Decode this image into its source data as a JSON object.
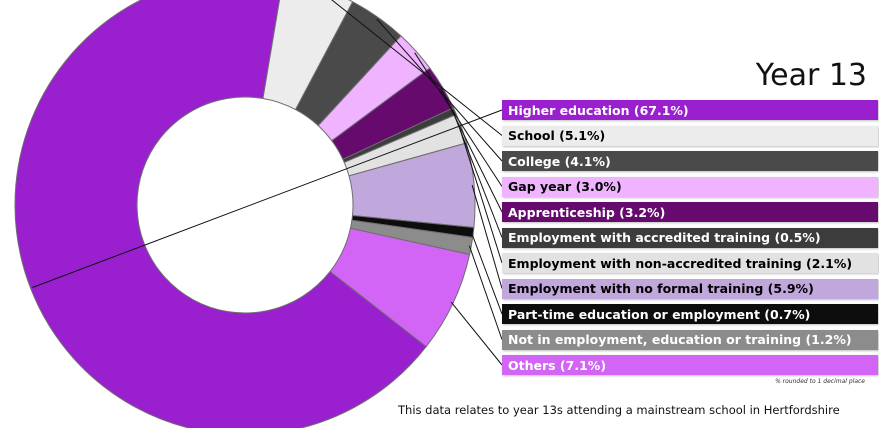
{
  "chart_data": {
    "type": "pie",
    "title": "Year 13",
    "categories": [
      "Higher education (67.1%)",
      "School (5.1%)",
      "College (4.1%)",
      "Gap year (3.0%)",
      "Apprenticeship (3.2%)",
      "Employment with accredited training (0.5%)",
      "Employment with non-accredited training (2.1%)",
      "Employment with no formal training (5.9%)",
      "Part-time education or employment (0.7%)",
      "Not in employment, education or training (1.2%)",
      "Others (7.1%)"
    ],
    "values": [
      67.1,
      5.1,
      4.1,
      3.0,
      3.2,
      0.5,
      2.1,
      5.9,
      0.7,
      1.2,
      7.1
    ],
    "colors": [
      "#9a1fcf",
      "#ececec",
      "#4a4a4a",
      "#f0b3ff",
      "#660a6e",
      "#3c3c3c",
      "#e2e2e2",
      "#c0a8dc",
      "#0d0d0d",
      "#8c8c8c",
      "#d265f5"
    ],
    "text_colors": [
      "#ffffff",
      "#000000",
      "#ffffff",
      "#000000",
      "#ffffff",
      "#ffffff",
      "#000000",
      "#000000",
      "#ffffff",
      "#ffffff",
      "#ffffff"
    ],
    "legend_position": "right",
    "footnote": "% rounded to 1 decimal place",
    "caption": "This data relates to year 13s attending a mainstream school in Hertfordshire"
  }
}
